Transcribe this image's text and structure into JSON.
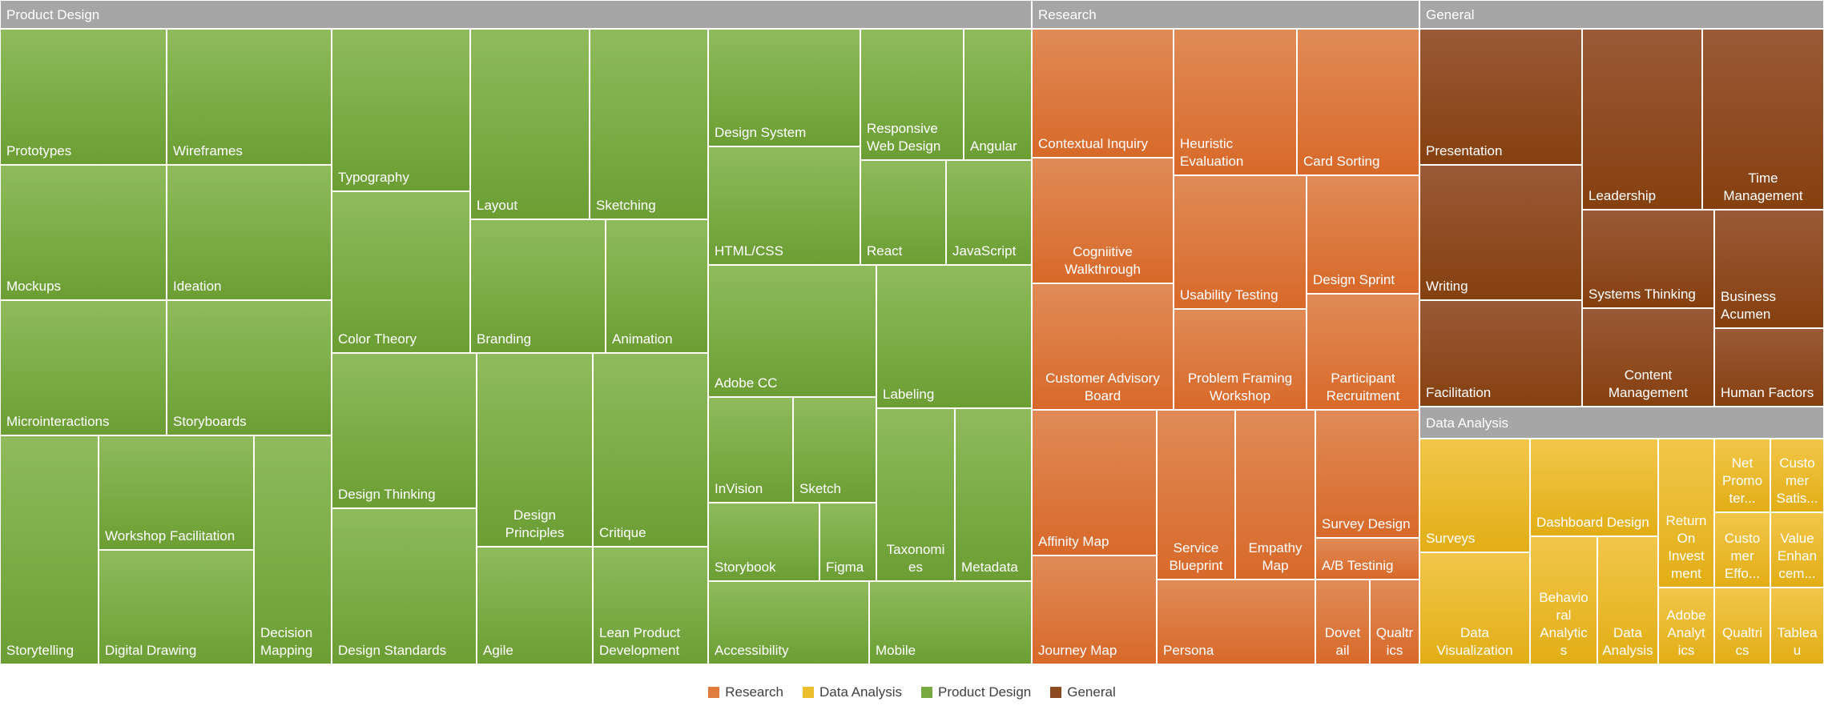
{
  "chart_data": {
    "type": "treemap",
    "colors": {
      "Product Design": "#78a940",
      "Research": "#e07c3e",
      "General": "#8b4a1f",
      "Data Analysis": "#ecbd2c",
      "header": "#a6a6a6"
    },
    "legend": {
      "position": "bottom",
      "entries": [
        "Research",
        "Data Analysis",
        "Product Design",
        "General"
      ]
    },
    "groups": [
      {
        "name": "Product Design",
        "items": [
          "Prototypes",
          "Wireframes",
          "Mockups",
          "Ideation",
          "Microinteractions",
          "Storyboards",
          "Storytelling",
          "Workshop Facilitation",
          "Digital Drawing",
          "Decision Mapping",
          "Typography",
          "Layout",
          "Sketching",
          "Color Theory",
          "Branding",
          "Animation",
          "Design Thinking",
          "Design Standards",
          "Design Principles",
          "Agile",
          "Critique",
          "Lean Product Development",
          "Design System",
          "Responsive Web Design",
          "Angular",
          "HTML/CSS",
          "React",
          "JavaScript",
          "Adobe CC",
          "Labeling",
          "InVision",
          "Sketch",
          "Storybook",
          "Figma",
          "Taxonomies",
          "Metadata",
          "Accessibility",
          "Mobile"
        ]
      },
      {
        "name": "Research",
        "items": [
          "Contextual Inquiry",
          "Heuristic Evaluation",
          "Card Sorting",
          "Cogniitive Walkthrough",
          "Usability Testing",
          "Design Sprint",
          "Customer Advisory Board",
          "Problem Framing Workshop",
          "Participant Recruitment",
          "Affinity Map",
          "Journey Map",
          "Service Blueprint",
          "Empathy Map",
          "Survey Design",
          "A/B Testinig",
          "Persona",
          "Dovetail",
          "Qualtrics"
        ]
      },
      {
        "name": "General",
        "items": [
          "Presentation",
          "Writing",
          "Facilitation",
          "Leadership",
          "Time Management",
          "Systems Thinking",
          "Business Acumen",
          "Content Management",
          "Human Factors"
        ]
      },
      {
        "name": "Data Analysis",
        "items": [
          "Surveys",
          "Data Visualization",
          "Dashboard Design",
          "Behavioral Analytics",
          "Data Analysis",
          "Return On Investment",
          "Adobe Analytics",
          "Net Promoter...",
          "Customer Effo...",
          "Qualtrics",
          "Customer Satis...",
          "Value Enhancem...",
          "Tableau"
        ]
      }
    ]
  }
}
